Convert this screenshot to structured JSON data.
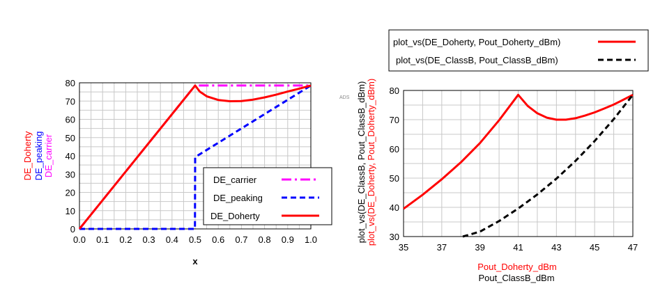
{
  "chart_data": [
    {
      "type": "line",
      "xlabel": "x",
      "ylabels": [
        {
          "text": "DE_Doherty",
          "color": "#ff0000"
        },
        {
          "text": "DE_peaking",
          "color": "#0000ff"
        },
        {
          "text": "DE_carrier",
          "color": "#ff00ff"
        }
      ],
      "xlim": [
        0,
        1
      ],
      "ylim": [
        0,
        80
      ],
      "xticks": [
        "0.0",
        "0.1",
        "0.2",
        "0.3",
        "0.4",
        "0.5",
        "0.6",
        "0.7",
        "0.8",
        "0.9",
        "1.0"
      ],
      "yticks": [
        "0",
        "10",
        "20",
        "30",
        "40",
        "50",
        "60",
        "70",
        "80"
      ],
      "grid": true,
      "legend_position": "bottom-right",
      "series": [
        {
          "name": "DE_carrier",
          "color": "#ff00ff",
          "style": "dashdot",
          "x": [
            0,
            0.5,
            1.0
          ],
          "y": [
            0,
            78.5,
            78.5
          ]
        },
        {
          "name": "DE_peaking",
          "color": "#0000ff",
          "style": "dashed",
          "x": [
            0,
            0.499,
            0.5,
            1.0
          ],
          "y": [
            0,
            0,
            39.3,
            78.5
          ]
        },
        {
          "name": "DE_Doherty",
          "color": "#ff0000",
          "style": "solid",
          "x": [
            0,
            0.5,
            0.52,
            0.55,
            0.6,
            0.65,
            0.7,
            0.75,
            0.8,
            0.85,
            0.9,
            0.95,
            1.0
          ],
          "y": [
            0,
            78.5,
            75.2,
            72.6,
            70.6,
            69.9,
            70.0,
            70.8,
            72.0,
            73.5,
            75.2,
            76.8,
            78.5
          ]
        }
      ]
    },
    {
      "type": "line",
      "xlabels": [
        {
          "text": "Pout_Doherty_dBm",
          "color": "#ff0000"
        },
        {
          "text": "Pout_ClassB_dBm",
          "color": "#000000"
        }
      ],
      "ylabels": [
        {
          "text": "plot_vs(DE_ClassB, Pout_ClassB_dBm)",
          "color": "#000000"
        },
        {
          "text": "plot_vs(DE_Doherty, Pout_Doherty_dBm)",
          "color": "#ff0000"
        }
      ],
      "annotation": "ADS",
      "xlim": [
        35,
        47
      ],
      "ylim": [
        30,
        80
      ],
      "xticks": [
        "35",
        "37",
        "39",
        "41",
        "43",
        "45",
        "47"
      ],
      "yticks": [
        "30",
        "40",
        "50",
        "60",
        "70",
        "80"
      ],
      "grid": true,
      "legend_position": "top",
      "series": [
        {
          "name": "plot_vs(DE_Doherty, Pout_Doherty_dBm)",
          "color": "#ff0000",
          "style": "solid",
          "x": [
            35,
            36,
            37,
            38,
            39,
            40,
            41,
            41.5,
            42,
            42.5,
            43,
            43.5,
            44,
            44.5,
            45,
            45.5,
            46,
            46.5,
            47
          ],
          "y": [
            39.5,
            44.3,
            49.6,
            55.4,
            62.0,
            69.8,
            78.5,
            74.7,
            72.2,
            70.7,
            70.0,
            70.0,
            70.5,
            71.4,
            72.5,
            73.8,
            75.2,
            76.8,
            78.5
          ]
        },
        {
          "name": "plot_vs(DE_ClassB, Pout_ClassB_dBm)",
          "color": "#000000",
          "style": "dashed",
          "x": [
            38.1,
            39,
            40,
            41,
            42,
            43,
            44,
            45,
            46,
            47
          ],
          "y": [
            30,
            31.7,
            35.3,
            39.6,
            44.4,
            49.8,
            55.9,
            62.7,
            70.2,
            78.5
          ]
        }
      ]
    }
  ]
}
